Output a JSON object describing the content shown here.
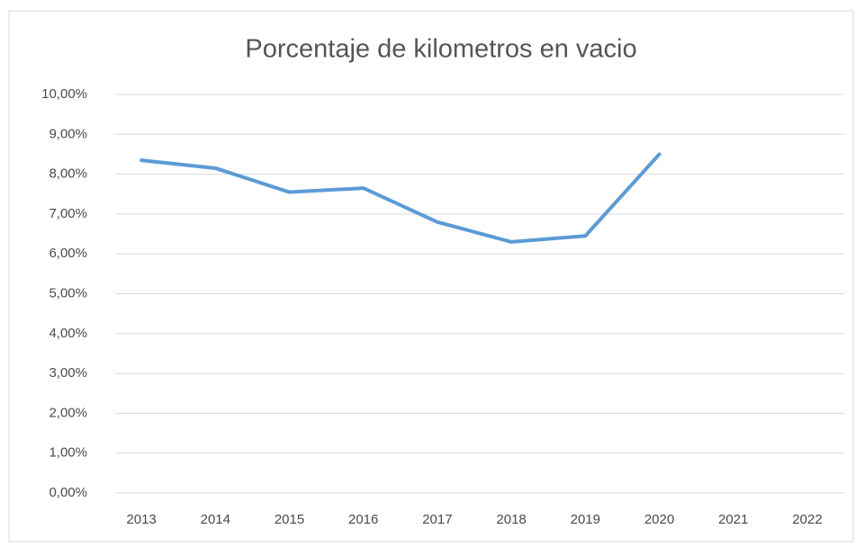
{
  "chart_data": {
    "type": "line",
    "title": "Porcentaje de kilometros en vacio",
    "categories": [
      "2013",
      "2014",
      "2015",
      "2016",
      "2017",
      "2018",
      "2019",
      "2020",
      "2021",
      "2022"
    ],
    "series": [
      {
        "name": "Porcentaje de kilometros en vacio",
        "color": "#5b9bd5",
        "values": [
          8.35,
          8.15,
          7.55,
          7.65,
          6.8,
          6.3,
          6.45,
          8.5,
          null,
          null
        ]
      }
    ],
    "ylim": [
      0,
      10
    ],
    "yticks": [
      {
        "value": 0,
        "label": "0,00%"
      },
      {
        "value": 1,
        "label": "1,00%"
      },
      {
        "value": 2,
        "label": "2,00%"
      },
      {
        "value": 3,
        "label": "3,00%"
      },
      {
        "value": 4,
        "label": "4,00%"
      },
      {
        "value": 5,
        "label": "5,00%"
      },
      {
        "value": 6,
        "label": "6,00%"
      },
      {
        "value": 7,
        "label": "7,00%"
      },
      {
        "value": 8,
        "label": "8,00%"
      },
      {
        "value": 9,
        "label": "9,00%"
      },
      {
        "value": 10,
        "label": "10,00%"
      }
    ],
    "grid": true
  }
}
